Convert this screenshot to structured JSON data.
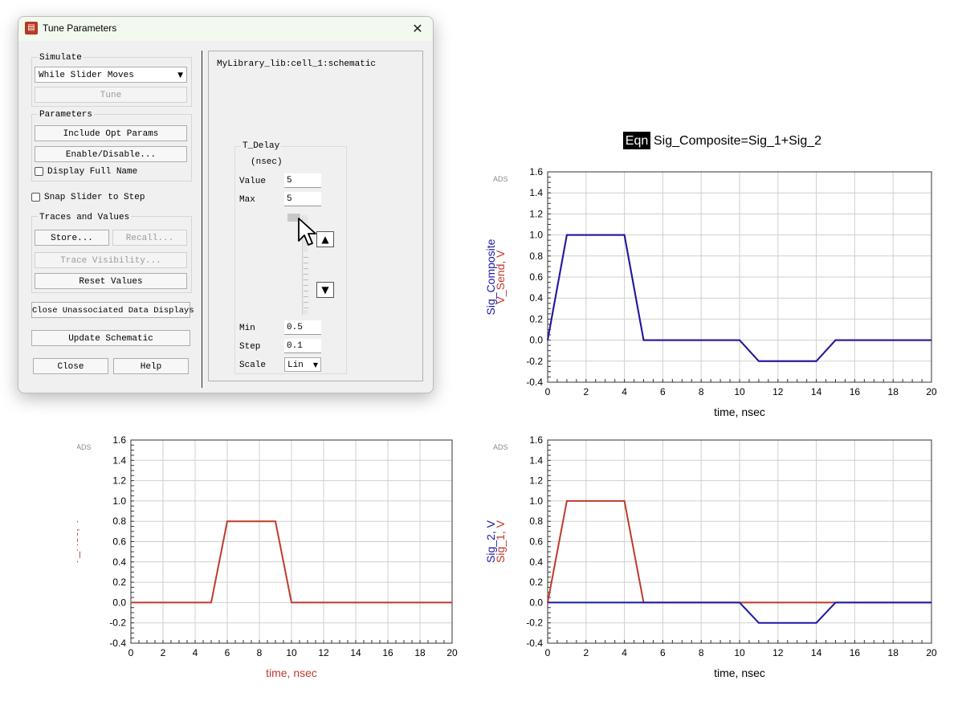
{
  "dialog": {
    "title": "Tune Parameters",
    "simulate_group": "Simulate",
    "simulate_mode": "While Slider Moves",
    "tune_button": "Tune",
    "parameters_group": "Parameters",
    "include_opt_params": "Include Opt Params",
    "enable_disable": "Enable/Disable...",
    "display_full_name": "Display Full Name",
    "snap_slider": "Snap Slider to Step",
    "traces_group": "Traces and Values",
    "store_button": "Store...",
    "recall_button": "Recall...",
    "trace_visibility": "Trace Visibility...",
    "reset_values": "Reset Values",
    "close_unassociated": "Close Unassociated Data Displays",
    "update_schematic": "Update Schematic",
    "close_button": "Close",
    "help_button": "Help",
    "schematic_path": "MyLibrary_lib:cell_1:schematic",
    "param": {
      "name": "T_Delay",
      "unit": "(nsec)",
      "value_label": "Value",
      "value": "5",
      "max_label": "Max",
      "max": "5",
      "min_label": "Min",
      "min": "0.5",
      "step_label": "Step",
      "step": "0.1",
      "scale_label": "Scale",
      "scale": "Lin"
    },
    "icons": {
      "app": "ads-app-icon",
      "close": "close-icon",
      "dropdown": "chevron-down-icon",
      "up": "arrow-up-icon",
      "down": "arrow-down-icon",
      "cursor": "mouse-pointer-icon"
    }
  },
  "chart_data": [
    {
      "type": "line",
      "title_box": "Eqn",
      "title": "Sig_Composite=Sig_1+Sig_2",
      "watermark": "ADS",
      "xlabel": "time, nsec",
      "ylabels": [
        {
          "text": "Sig_Composite",
          "color": "#1a1aa6"
        },
        {
          "text": "V_Send, V",
          "color": "#c0392b"
        }
      ],
      "xlim": [
        0,
        20
      ],
      "ylim": [
        -0.4,
        1.6
      ],
      "xticks": [
        "0",
        "2",
        "4",
        "6",
        "8",
        "10",
        "12",
        "14",
        "16",
        "18",
        "20"
      ],
      "yticks": [
        "-0.4",
        "-0.2",
        "0.0",
        "0.2",
        "0.4",
        "0.6",
        "0.8",
        "1.0",
        "1.2",
        "1.4",
        "1.6"
      ],
      "series": [
        {
          "name": "V_Send",
          "color": "#c0392b",
          "x": [
            0,
            1,
            4,
            5,
            10,
            11,
            14,
            15,
            20
          ],
          "y": [
            0,
            1,
            1,
            0,
            0,
            -0.2,
            -0.2,
            0,
            0
          ]
        },
        {
          "name": "Sig_Composite",
          "color": "#1a1aa6",
          "x": [
            0,
            1,
            4,
            5,
            10,
            11,
            14,
            15,
            20
          ],
          "y": [
            0,
            1,
            1,
            0,
            0,
            -0.2,
            -0.2,
            0,
            0
          ]
        }
      ]
    },
    {
      "type": "line",
      "title": "",
      "watermark": "ADS",
      "xlabel": "time, nsec",
      "xlabel_color": "#c0392b",
      "ylabels": [
        {
          "text": "V_Rec, V",
          "color": "#c0392b"
        }
      ],
      "xlim": [
        0,
        20
      ],
      "ylim": [
        -0.4,
        1.6
      ],
      "xticks": [
        "0",
        "2",
        "4",
        "6",
        "8",
        "10",
        "12",
        "14",
        "16",
        "18",
        "20"
      ],
      "yticks": [
        "-0.4",
        "-0.2",
        "0.0",
        "0.2",
        "0.4",
        "0.6",
        "0.8",
        "1.0",
        "1.2",
        "1.4",
        "1.6"
      ],
      "series": [
        {
          "name": "V_Rec",
          "color": "#c0392b",
          "x": [
            0,
            5,
            6,
            9,
            10,
            20
          ],
          "y": [
            0,
            0,
            0.8,
            0.8,
            0,
            0
          ]
        }
      ]
    },
    {
      "type": "line",
      "title": "",
      "watermark": "ADS",
      "xlabel": "time, nsec",
      "ylabels": [
        {
          "text": "Sig_2, V",
          "color": "#1a1aa6"
        },
        {
          "text": "Sig_1, V",
          "color": "#c0392b"
        }
      ],
      "xlim": [
        0,
        20
      ],
      "ylim": [
        -0.4,
        1.6
      ],
      "xticks": [
        "0",
        "2",
        "4",
        "6",
        "8",
        "10",
        "12",
        "14",
        "16",
        "18",
        "20"
      ],
      "yticks": [
        "-0.4",
        "-0.2",
        "0.0",
        "0.2",
        "0.4",
        "0.6",
        "0.8",
        "1.0",
        "1.2",
        "1.4",
        "1.6"
      ],
      "series": [
        {
          "name": "Sig_1",
          "color": "#c0392b",
          "x": [
            0,
            1,
            4,
            5,
            20
          ],
          "y": [
            0,
            1,
            1,
            0,
            0
          ]
        },
        {
          "name": "Sig_2",
          "color": "#1a1aa6",
          "x": [
            0,
            10,
            11,
            14,
            15,
            20
          ],
          "y": [
            0,
            0,
            -0.2,
            -0.2,
            0,
            0
          ]
        }
      ]
    }
  ]
}
